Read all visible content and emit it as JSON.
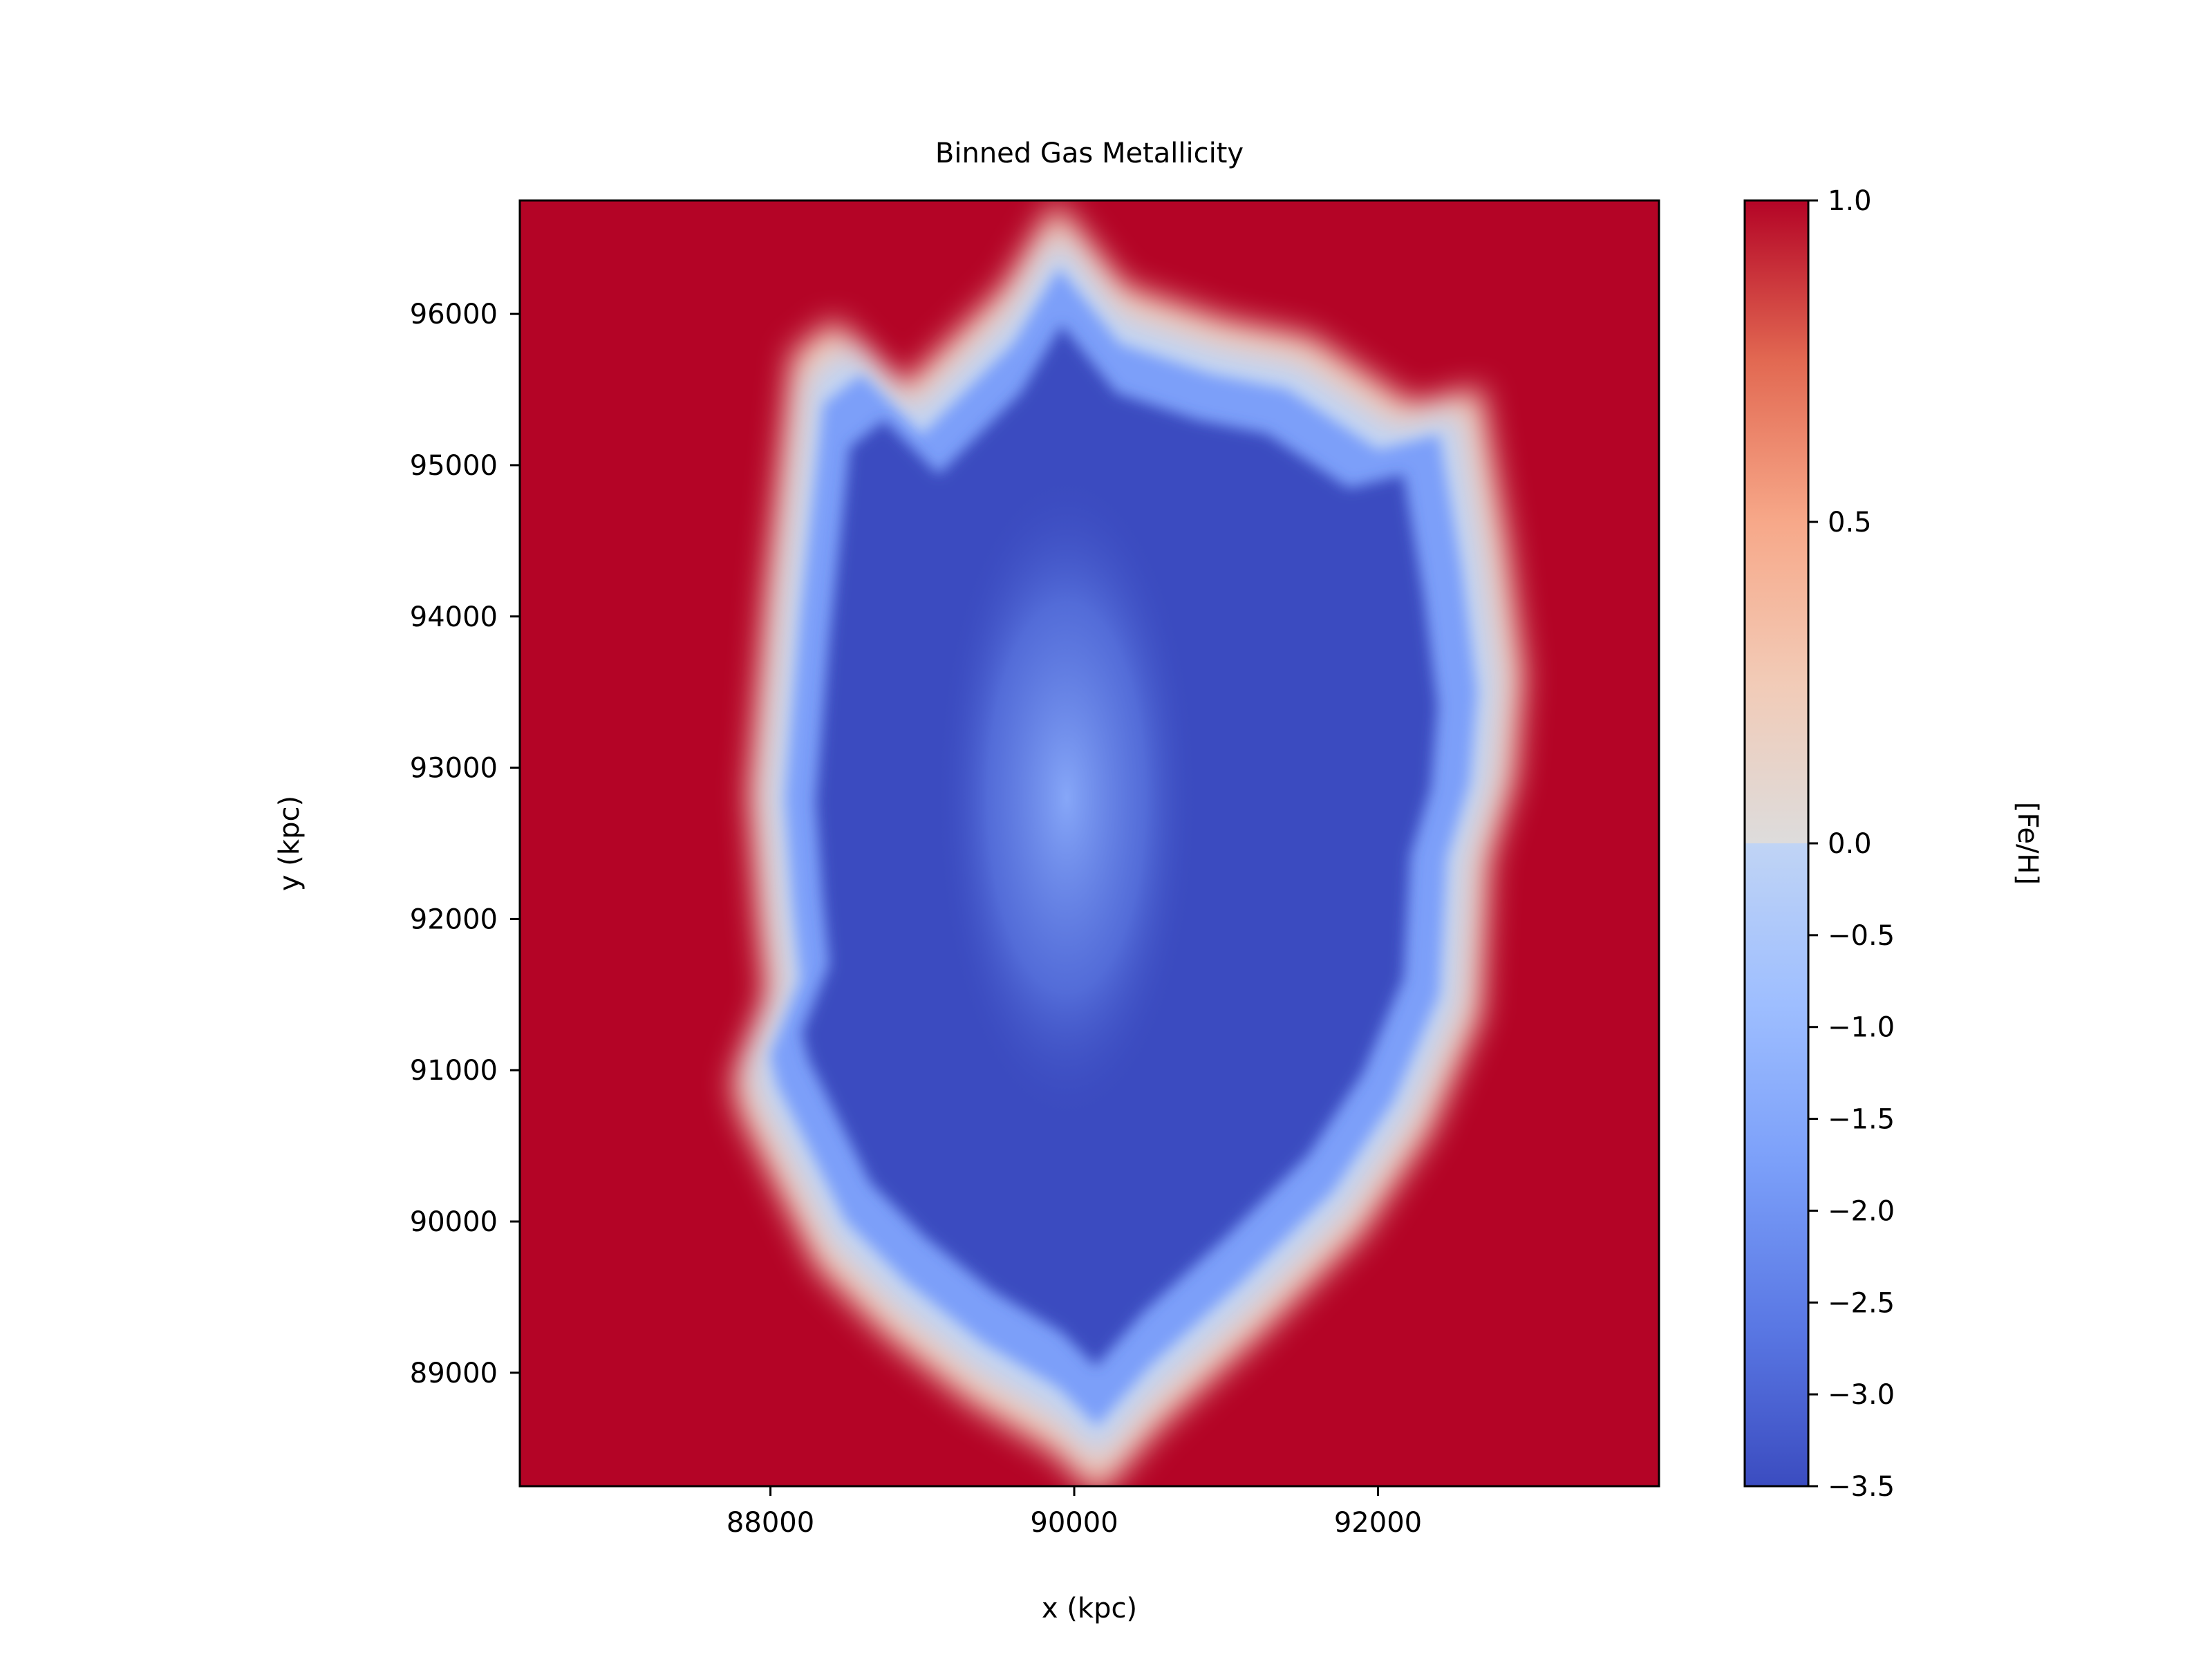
{
  "chart_data": {
    "type": "heatmap",
    "title": "Binned Gas Metallicity",
    "xlabel": "x (kpc)",
    "ylabel": "y (kpc)",
    "xlim": [
      86350,
      93850
    ],
    "ylim": [
      88250,
      96750
    ],
    "x_ticks": [
      {
        "value": 88000,
        "label": "88000"
      },
      {
        "value": 90000,
        "label": "90000"
      },
      {
        "value": 92000,
        "label": "92000"
      }
    ],
    "y_ticks": [
      {
        "value": 89000,
        "label": "89000"
      },
      {
        "value": 90000,
        "label": "90000"
      },
      {
        "value": 91000,
        "label": "91000"
      },
      {
        "value": 92000,
        "label": "92000"
      },
      {
        "value": 93000,
        "label": "93000"
      },
      {
        "value": 94000,
        "label": "94000"
      },
      {
        "value": 95000,
        "label": "95000"
      },
      {
        "value": 96000,
        "label": "96000"
      }
    ],
    "colorbar": {
      "label": "[Fe/H]",
      "colormap": "coolwarm",
      "range": [
        -3.5,
        1.0
      ],
      "note_nonlinear": true,
      "ticks": [
        {
          "value": 1.0,
          "label": "1.0"
        },
        {
          "value": 0.5,
          "label": "0.5"
        },
        {
          "value": 0.0,
          "label": "0.0"
        },
        {
          "value": -0.5,
          "label": "−0.5"
        },
        {
          "value": -1.0,
          "label": "−1.0"
        },
        {
          "value": -1.5,
          "label": "−1.5"
        },
        {
          "value": -2.0,
          "label": "−2.0"
        },
        {
          "value": -2.5,
          "label": "−2.5"
        },
        {
          "value": -3.0,
          "label": "−3.0"
        },
        {
          "value": -3.5,
          "label": "−3.5"
        }
      ]
    },
    "background_value": 1.0,
    "region_boundary": [
      [
        88200,
        94000
      ],
      [
        88350,
        95400
      ],
      [
        88600,
        95600
      ],
      [
        89000,
        95200
      ],
      [
        89600,
        95800
      ],
      [
        89900,
        96300
      ],
      [
        90300,
        95800
      ],
      [
        90900,
        95600
      ],
      [
        91400,
        95500
      ],
      [
        92000,
        95100
      ],
      [
        92400,
        95200
      ],
      [
        92550,
        94300
      ],
      [
        92650,
        93500
      ],
      [
        92600,
        92900
      ],
      [
        92450,
        92400
      ],
      [
        92400,
        91500
      ],
      [
        92100,
        90800
      ],
      [
        91700,
        90200
      ],
      [
        91100,
        89600
      ],
      [
        90500,
        89050
      ],
      [
        90150,
        88650
      ],
      [
        89900,
        88900
      ],
      [
        89400,
        89200
      ],
      [
        88900,
        89600
      ],
      [
        88500,
        90000
      ],
      [
        88300,
        90400
      ],
      [
        88050,
        90900
      ],
      [
        88000,
        91100
      ],
      [
        88200,
        91600
      ],
      [
        88150,
        92100
      ],
      [
        88100,
        92800
      ],
      [
        88150,
        93400
      ]
    ],
    "region_value": -3.2,
    "notes_colors": {
      "high": "#b40426",
      "mid": "#dddddd",
      "low": "#3b4cc0"
    }
  }
}
